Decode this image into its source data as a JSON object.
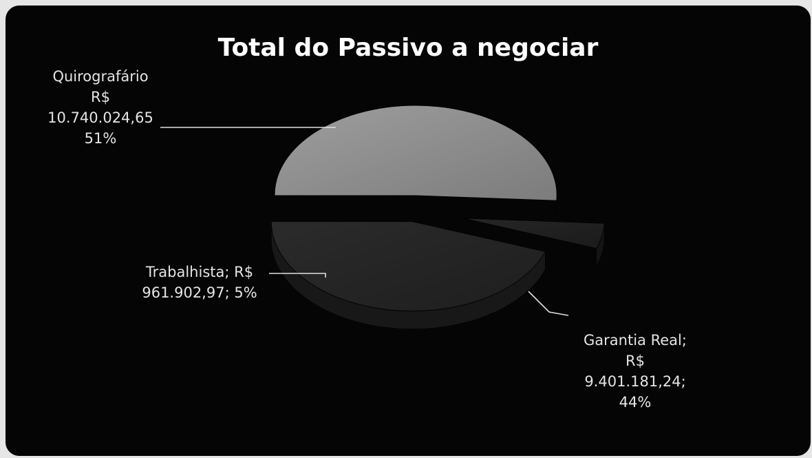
{
  "chart_data": {
    "type": "pie",
    "title": "Total do Passivo a negociar",
    "categories": [
      "Quirografário",
      "Trabalhista",
      "Garantia Real"
    ],
    "values": [
      10740024.65,
      961902.97,
      9401181.24
    ],
    "percentages": [
      51,
      5,
      44
    ],
    "labels": [
      {
        "category": "Quirografário",
        "lines": [
          "Quirografário",
          "R$",
          "10.740.024,65",
          "51%"
        ]
      },
      {
        "category": "Trabalhista",
        "lines": [
          "Trabalhista; R$",
          "961.902,97; 5%"
        ]
      },
      {
        "category": "Garantia Real",
        "lines": [
          "Garantia Real;",
          "R$",
          "9.401.181,24;",
          "44%"
        ]
      }
    ],
    "colors": [
      "#8c8c8c",
      "#1e1e1e",
      "#262626"
    ],
    "legend": "none",
    "style": "3d-exploded"
  }
}
